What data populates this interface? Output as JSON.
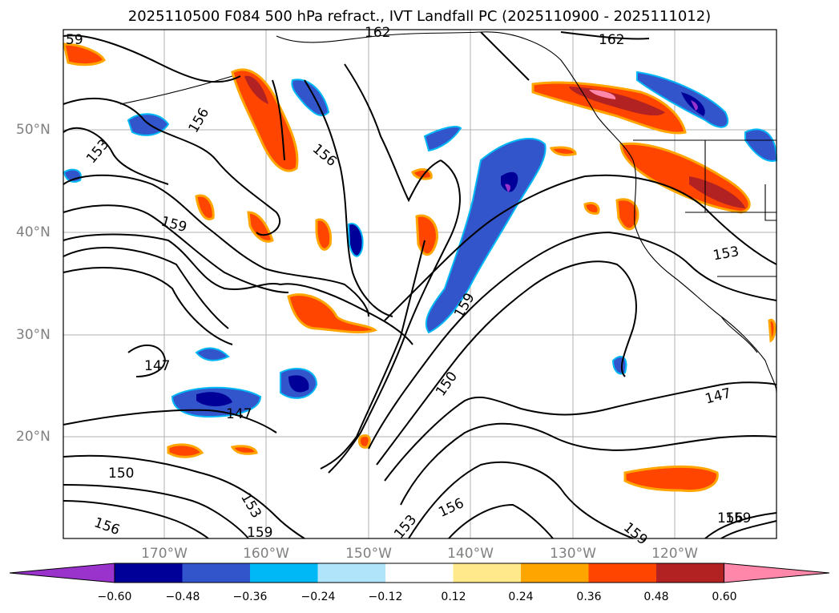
{
  "title": "2025110500 F084 500 hPa refract., IVT Landfall PC (2025110900 - 2025111012)",
  "lat_labels": [
    "50°N",
    "40°N",
    "30°N",
    "20°N"
  ],
  "lon_labels": [
    "170°W",
    "160°W",
    "150°W",
    "140°W",
    "130°W",
    "120°W"
  ],
  "contour_labels": [
    "59",
    "162",
    "162",
    "156",
    "153",
    "156",
    "159",
    "159",
    "150",
    "147",
    "147",
    "147",
    "150",
    "153",
    "153",
    "156",
    "156",
    "159",
    "159",
    "153",
    "156",
    "159"
  ],
  "colorbar": {
    "ticks": [
      "−0.60",
      "−0.48",
      "−0.36",
      "−0.24",
      "−0.12",
      "0.12",
      "0.24",
      "0.36",
      "0.48",
      "0.60"
    ],
    "colors": [
      "#9933cc",
      "#000099",
      "#3355cc",
      "#00b8f5",
      "#b0e4fa",
      "#ffffff",
      "#ffe98a",
      "#ffa500",
      "#ff4500",
      "#b22222",
      "#ff88aa"
    ]
  },
  "colors": {
    "land_border": "#000000",
    "grid": "#b0b0b0",
    "axis_label": "#808080"
  }
}
